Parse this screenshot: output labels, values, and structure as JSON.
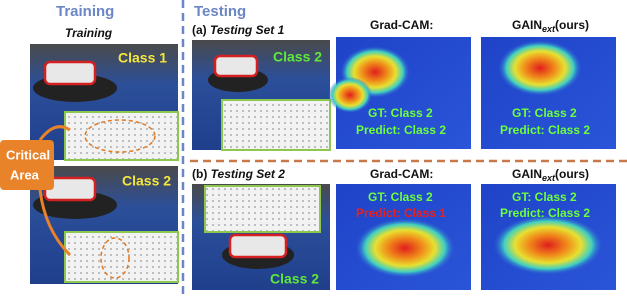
{
  "header": {
    "training": "Training",
    "testing": "Testing"
  },
  "training": {
    "title": "Training",
    "class_top": "Class 1",
    "class_bottom": "Class 2",
    "callout": [
      "Critical",
      "Area"
    ]
  },
  "testing": {
    "set1": {
      "tag": "(a)",
      "name": "Testing Set 1",
      "class": "Class 2",
      "gradcam": {
        "title": "Grad-CAM:",
        "gt": "GT: Class 2",
        "predict": "Predict: Class 2"
      },
      "gain": {
        "title": {
          "base": "GAIN",
          "sub": "ext",
          "suffix": "(ours)"
        },
        "gt": "GT: Class 2",
        "predict": "Predict: Class 2"
      }
    },
    "set2": {
      "tag": "(b)",
      "name": "Testing Set 2",
      "class": "Class 2",
      "gradcam": {
        "title": "Grad-CAM:",
        "gt": "GT: Class 2",
        "predict": "Predict: Class 1"
      },
      "gain": {
        "title": {
          "base": "GAIN",
          "sub": "ext",
          "suffix": "(ours)"
        },
        "gt": "GT: Class 2",
        "predict": "Predict: Class 2"
      }
    }
  }
}
